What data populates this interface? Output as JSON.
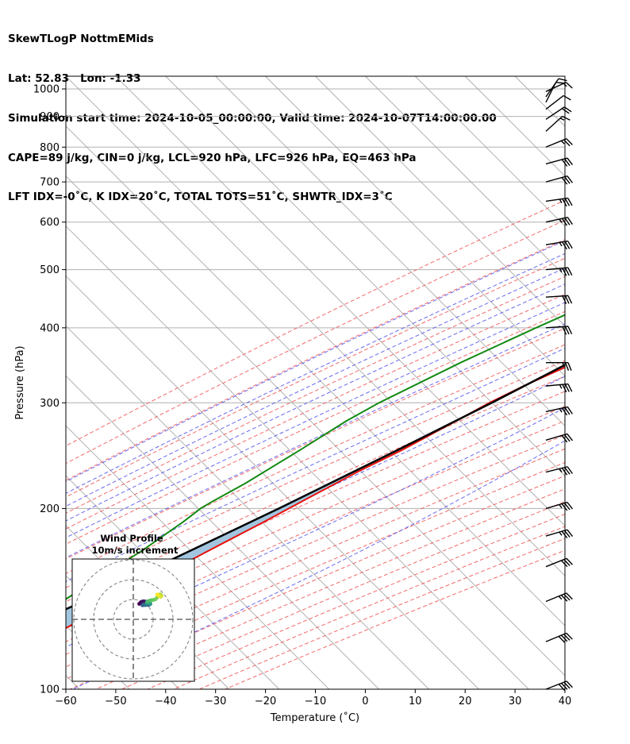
{
  "header": {
    "line1": "SkewTLogP NottmEMids",
    "line2": "Lat: 52.83   Lon: -1.33",
    "line3": "Simulation start time: 2024-10-05_00:00:00, Valid time: 2024-10-07T14:00:00.00",
    "line4": "CAPE=89 j/kg, CIN=0 j/kg, LCL=920 hPa, LFC=926 hPa, EQ=463 hPa",
    "line5": "LFT IDX=-0˚C, K IDX=20˚C, TOTAL TOTS=51˚C, SHWTR_IDX=3˚C"
  },
  "colors": {
    "temperature": "#e8120c",
    "dewpoint": "#138a13",
    "parcel": "#000000",
    "cape_fill": "#a2c6df",
    "dry_adiabat": "#f05050",
    "moist_adiabat": "#5050f0",
    "mixing_ratio": "#8a2be2",
    "isotherm": "#a9a9a9",
    "grid": "#b0b0b0"
  },
  "chart_data": [
    {
      "type": "line",
      "name": "skew-t",
      "xlabel": "Temperature (˚C)",
      "ylabel": "Pressure (hPa)",
      "xlim": [
        -60,
        40
      ],
      "ylim": [
        1050,
        100
      ],
      "y_scale": "log",
      "skew": "isotherms slanted 45 degrees",
      "xticks": [
        -60,
        -50,
        -40,
        -30,
        -20,
        -10,
        0,
        10,
        20,
        30,
        40
      ],
      "xtick_labels": [
        "−60",
        "−50",
        "−40",
        "−30",
        "−20",
        "−10",
        "0",
        "10",
        "20",
        "30",
        "40"
      ],
      "yticks": [
        1000,
        900,
        800,
        700,
        600,
        500,
        400,
        300,
        200,
        100
      ],
      "ytick_labels": [
        "1000",
        "900",
        "800",
        "700",
        "600",
        "500",
        "400",
        "300",
        "200",
        "100"
      ],
      "grid": true,
      "series": [
        {
          "key": "temperature",
          "p": [
            990,
            920,
            850,
            750,
            650,
            550,
            450,
            400,
            350,
            320,
            300,
            280,
            250,
            230,
            210,
            200,
            190,
            175,
            160,
            150,
            140,
            130,
            120,
            110,
            100
          ],
          "t": [
            16.5,
            11.9,
            10.0,
            6.0,
            1.5,
            -4.0,
            -11.5,
            -16.0,
            -23.3,
            -29.0,
            -32.5,
            -35.5,
            -40.6,
            -45.1,
            -49.3,
            -51.5,
            -53.8,
            -57.8,
            -62.0,
            -64.9,
            -67.8,
            -71.0,
            -74.6,
            -78.6,
            -83.0
          ]
        },
        {
          "key": "dewpoint",
          "p": [
            990,
            950,
            920,
            850,
            800,
            700,
            600,
            550,
            500,
            450,
            400,
            350,
            300,
            280,
            250,
            220,
            205,
            200,
            190,
            170,
            150,
            130,
            120,
            100
          ],
          "t": [
            12.0,
            12.0,
            9.0,
            3.0,
            -1.5,
            -10.0,
            -18.0,
            -20.0,
            -25.0,
            -30.5,
            -38.2,
            -46.3,
            -54.6,
            -57.5,
            -61.0,
            -65.3,
            -68.3,
            -69.2,
            -70.0,
            -72.5,
            -76.4,
            -80.3,
            -82.5,
            -87.5
          ]
        },
        {
          "key": "parcel",
          "p": [
            990,
            920,
            850,
            750,
            650,
            550,
            450,
            350,
            300,
            250,
            200,
            150,
            100
          ],
          "t": [
            16.5,
            12.5,
            10.0,
            6.5,
            2.0,
            -4.0,
            -12.0,
            -24.5,
            -32.0,
            -41.5,
            -53.5,
            -70.0,
            -94.7
          ]
        }
      ],
      "cape_region": {
        "p_bottom": 463,
        "p_top": 100,
        "label": ""
      }
    },
    {
      "type": "scatter",
      "name": "wind-hodograph",
      "title": "Wind Profile",
      "subtitle": "10m/s increment",
      "rings_ms": [
        10,
        20,
        30
      ],
      "u": [
        3.0,
        3.7,
        4.4,
        5.1,
        5.9,
        6.9,
        7.8,
        8.3,
        8.0,
        7.5,
        7.0,
        6.2,
        5.3,
        4.6,
        4.8,
        5.3,
        5.8,
        6.2,
        6.5,
        6.9,
        7.4,
        8.0,
        8.4,
        8.6,
        8.5,
        8.0,
        7.5,
        7.1,
        6.9,
        7.0,
        7.4,
        8.0,
        8.7,
        9.4,
        10.2,
        11.2,
        11.9,
        12.4,
        13.0,
        13.5,
        14.0,
        14.2,
        13.8,
        13.2,
        12.6,
        12.1
      ],
      "v": [
        7.8,
        8.5,
        8.9,
        9.1,
        9.0,
        8.8,
        8.4,
        7.9,
        7.4,
        7.3,
        7.5,
        7.3,
        7.2,
        7.1,
        7.3,
        7.4,
        7.3,
        7.2,
        7.5,
        7.8,
        7.9,
        7.8,
        7.6,
        7.8,
        8.2,
        8.7,
        8.7,
        8.4,
        8.6,
        8.8,
        9.1,
        9.3,
        9.5,
        9.7,
        9.8,
        10.1,
        10.9,
        11.6,
        12.2,
        12.6,
        12.3,
        11.8,
        11.4,
        11.7,
        12.1,
        12.5
      ],
      "colormap": "viridis"
    },
    {
      "type": "scatter",
      "name": "wind-barbs",
      "p": [
        990,
        970,
        950,
        925,
        890,
        850,
        800,
        750,
        700,
        650,
        600,
        550,
        500,
        450,
        400,
        350,
        320,
        290,
        260,
        230,
        200,
        180,
        160,
        140,
        120,
        100
      ],
      "u_knots": [
        -13,
        -7,
        -4,
        -9,
        -15,
        -11,
        -22,
        -29,
        -29,
        -35,
        -36,
        -35,
        -33,
        -31,
        -30,
        -25,
        -33,
        -32,
        -31,
        -32,
        -34,
        -34,
        -30,
        -34,
        -36,
        -36
      ],
      "v_knots": [
        -6,
        -10,
        -8,
        -7,
        -10,
        -10,
        -9,
        -8,
        -8,
        -5,
        -8,
        -6,
        -3,
        -2,
        -2,
        0,
        -3,
        -7,
        -9,
        -8,
        -10,
        -10,
        -12,
        -14,
        -15,
        -14
      ]
    }
  ]
}
